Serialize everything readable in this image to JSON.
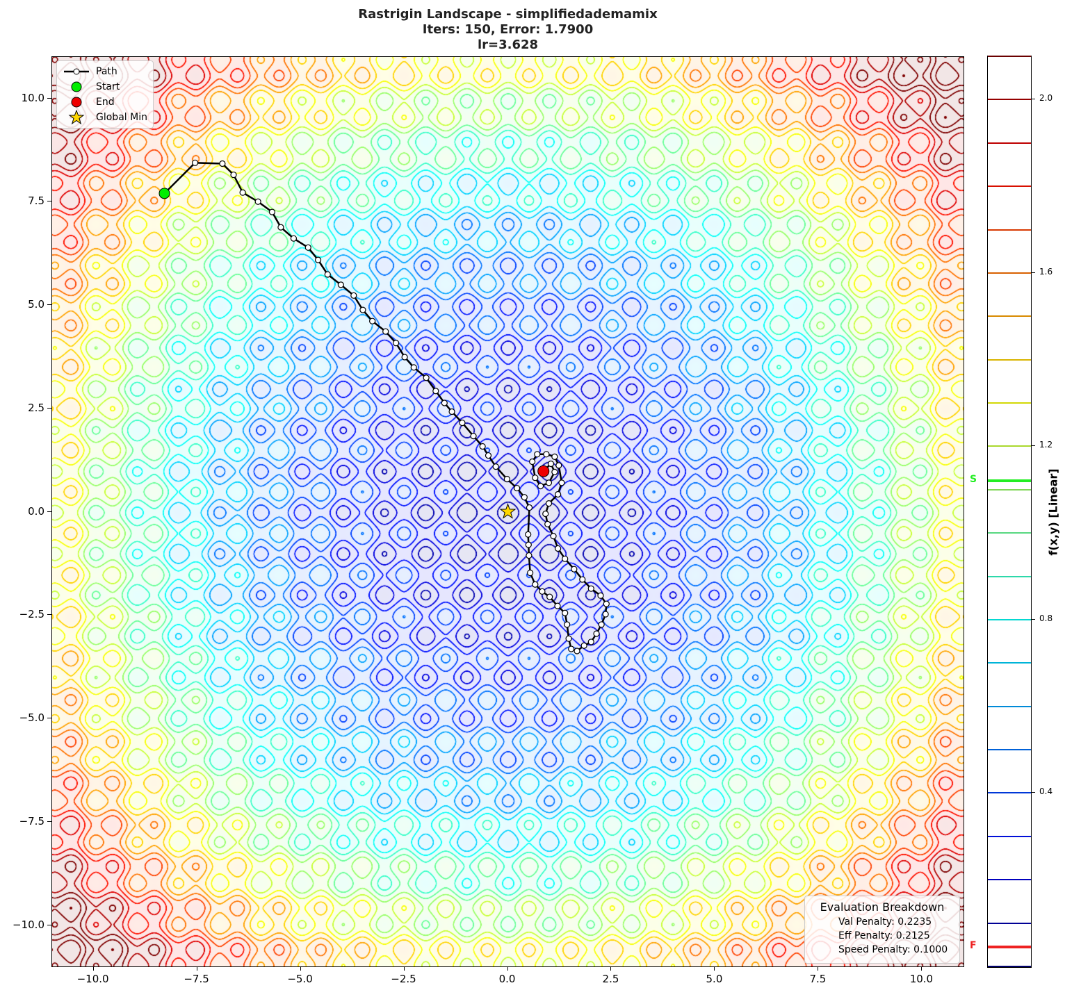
{
  "chart_data": {
    "type": "contour",
    "title": [
      "Rastrigin Landscape - simplifiedademamix",
      "Iters: 150, Error: 1.7900",
      "lr=3.628"
    ],
    "xlim": [
      -11,
      11
    ],
    "ylim": [
      -11,
      11
    ],
    "xticks": [
      -10.0,
      -7.5,
      -5.0,
      -2.5,
      0.0,
      2.5,
      5.0,
      7.5,
      10.0
    ],
    "xtick_labels": [
      "−10.0",
      "−7.5",
      "−5.0",
      "−2.5",
      "0.0",
      "2.5",
      "5.0",
      "7.5",
      "10.0"
    ],
    "yticks": [
      10.0,
      7.5,
      5.0,
      2.5,
      0.0,
      -2.5,
      -5.0,
      -7.5,
      -10.0
    ],
    "ytick_labels": [
      "10.0",
      "7.5",
      "5.0",
      "2.5",
      "0.0",
      "−2.5",
      "−5.0",
      "−7.5",
      "−10.0"
    ],
    "colormap": "jet",
    "colorbar": {
      "label": "f(x,y) [Linear]",
      "range": [
        0,
        2.1
      ],
      "ticks": [
        0.4,
        0.8,
        1.2,
        1.6,
        2.0
      ],
      "tick_labels": [
        "0.4",
        "0.8",
        "1.2",
        "1.6",
        "2.0"
      ],
      "level_step": 0.1,
      "start_marker": {
        "label": "S",
        "value": 1.12,
        "color": "#22ee22"
      },
      "final_marker": {
        "label": "F",
        "value": 0.045,
        "color": "#ee2222"
      }
    },
    "legend": {
      "placement": "top-left",
      "entries": [
        "Path",
        "Start",
        "End",
        "Global Min"
      ]
    },
    "global_min": [
      0,
      0
    ],
    "start": [
      -8.29,
      7.7
    ],
    "end": [
      0.86,
      0.98
    ],
    "path": [
      [
        -8.29,
        7.7
      ],
      [
        -7.55,
        8.44
      ],
      [
        -6.89,
        8.42
      ],
      [
        -6.62,
        8.15
      ],
      [
        -6.4,
        7.72
      ],
      [
        -6.03,
        7.5
      ],
      [
        -5.69,
        7.25
      ],
      [
        -5.48,
        6.88
      ],
      [
        -5.17,
        6.61
      ],
      [
        -4.82,
        6.39
      ],
      [
        -4.58,
        6.09
      ],
      [
        -4.35,
        5.74
      ],
      [
        -4.03,
        5.49
      ],
      [
        -3.72,
        5.23
      ],
      [
        -3.5,
        4.88
      ],
      [
        -3.27,
        4.61
      ],
      [
        -2.95,
        4.36
      ],
      [
        -2.7,
        4.08
      ],
      [
        -2.49,
        3.74
      ],
      [
        -2.27,
        3.49
      ],
      [
        -1.97,
        3.24
      ],
      [
        -1.74,
        2.92
      ],
      [
        -1.53,
        2.63
      ],
      [
        -1.35,
        2.42
      ],
      [
        -1.1,
        2.15
      ],
      [
        -0.83,
        1.83
      ],
      [
        -0.61,
        1.58
      ],
      [
        -0.47,
        1.36
      ],
      [
        -0.29,
        1.09
      ],
      [
        -0.02,
        0.79
      ],
      [
        0.22,
        0.57
      ],
      [
        0.4,
        0.35
      ],
      [
        0.52,
        0.1
      ],
      [
        0.49,
        -0.55
      ],
      [
        0.5,
        -0.8
      ],
      [
        0.51,
        -1.06
      ],
      [
        0.54,
        -1.48
      ],
      [
        0.66,
        -1.76
      ],
      [
        0.83,
        -1.93
      ],
      [
        1.01,
        -2.06
      ],
      [
        1.2,
        -2.28
      ],
      [
        1.38,
        -2.45
      ],
      [
        1.43,
        -2.73
      ],
      [
        1.47,
        -3.07
      ],
      [
        1.53,
        -3.32
      ],
      [
        1.67,
        -3.37
      ],
      [
        1.84,
        -3.24
      ],
      [
        2.01,
        -3.15
      ],
      [
        2.14,
        -2.95
      ],
      [
        2.26,
        -2.73
      ],
      [
        2.36,
        -2.48
      ],
      [
        2.38,
        -2.23
      ],
      [
        2.24,
        -2.03
      ],
      [
        2.01,
        -1.86
      ],
      [
        1.8,
        -1.64
      ],
      [
        1.6,
        -1.39
      ],
      [
        1.38,
        -1.14
      ],
      [
        1.21,
        -0.89
      ],
      [
        1.1,
        -0.59
      ],
      [
        0.96,
        -0.3
      ],
      [
        0.91,
        -0.05
      ],
      [
        0.99,
        0.2
      ],
      [
        1.21,
        0.42
      ],
      [
        1.3,
        0.7
      ],
      [
        1.23,
        1.12
      ],
      [
        1.13,
        1.33
      ],
      [
        0.93,
        1.39
      ],
      [
        0.71,
        1.39
      ],
      [
        0.59,
        1.21
      ],
      [
        0.66,
        0.82
      ],
      [
        0.79,
        0.62
      ],
      [
        0.99,
        0.7
      ],
      [
        1.13,
        0.96
      ],
      [
        1.04,
        1.16
      ],
      [
        0.86,
        0.98
      ]
    ]
  },
  "eval_box": {
    "title": "Evaluation Breakdown",
    "lines": [
      "Val Penalty: 0.2235",
      "Eff Penalty: 0.2125",
      "Speed Penalty: 0.1000"
    ]
  }
}
